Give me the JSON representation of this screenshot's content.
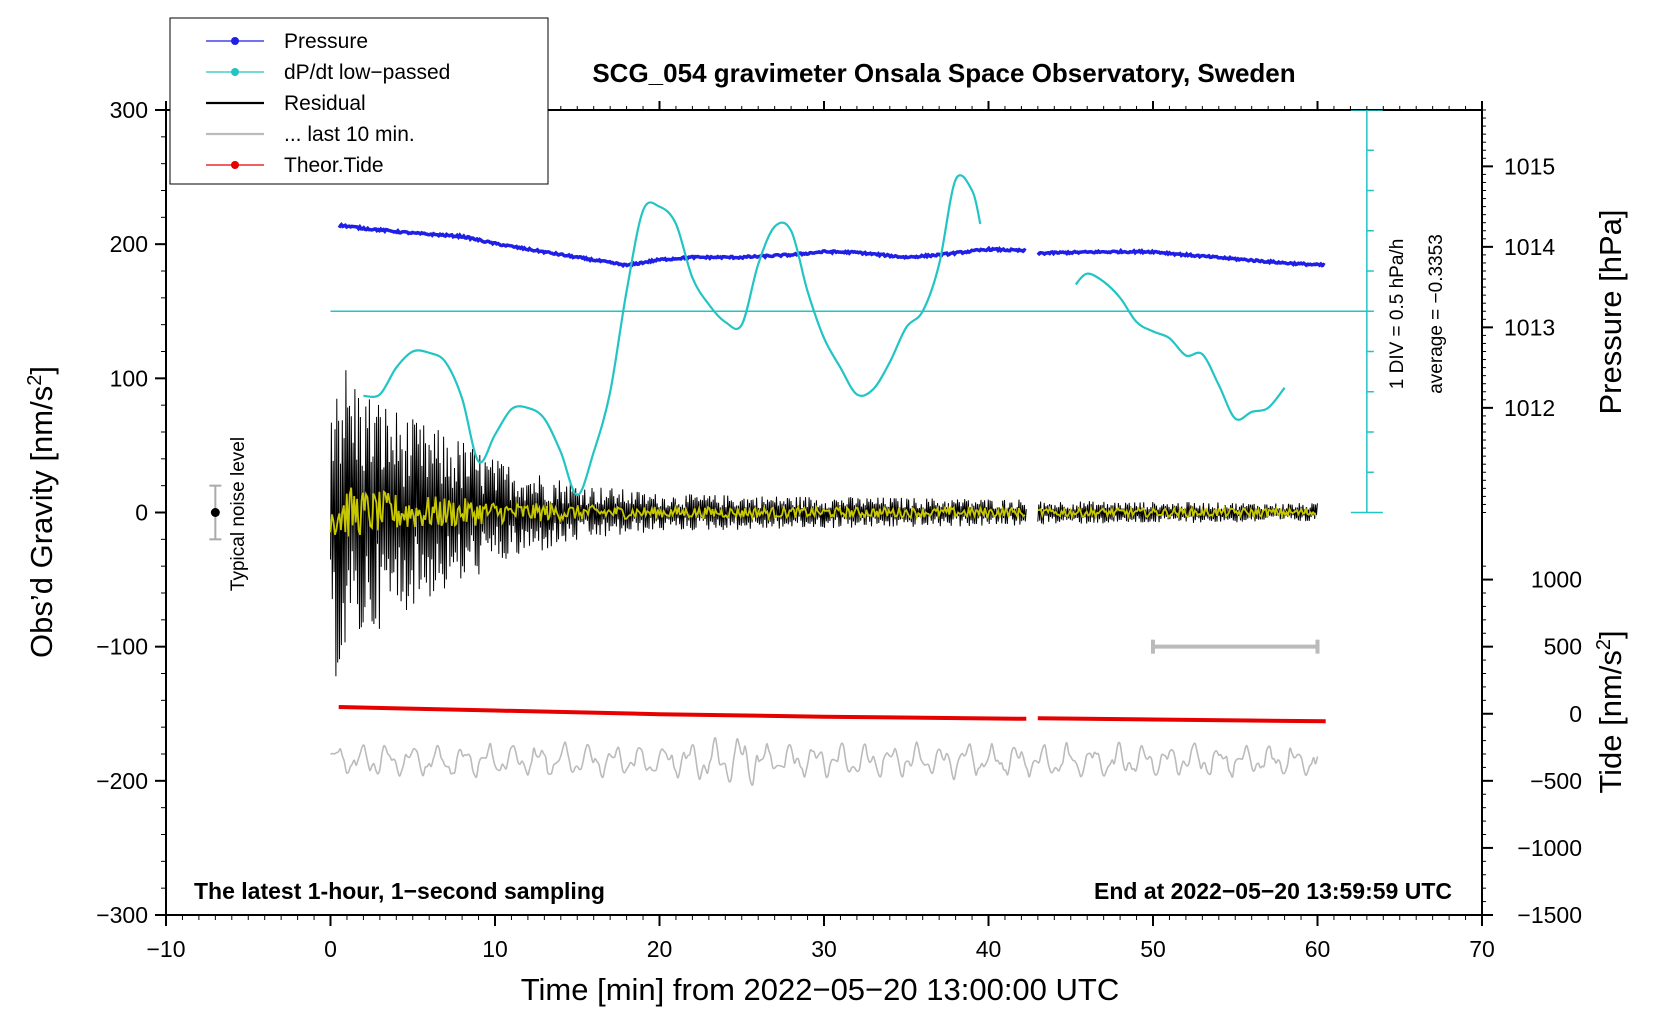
{
  "chart_data": {
    "type": "line",
    "title": "SCG_054 gravimeter Onsala Space Observatory, Sweden",
    "xlabel": "Time [min] from 2022−05−20 13:00:00 UTC",
    "ylabel_left": "Obs’d Gravity [nm/s",
    "ylabel_left_sup": "2",
    "ylabel_left_tail": "]",
    "ylabel_right_pressure": "Pressure [hPa]",
    "ylabel_right_tide": "Tide [nm/s",
    "ylabel_right_tide_sup": "2",
    "ylabel_right_tide_tail": "]",
    "xlim": [
      -10,
      70
    ],
    "ylim_left": [
      -300,
      300
    ],
    "x_ticks": [
      "−10",
      "0",
      "10",
      "20",
      "30",
      "40",
      "50",
      "60",
      "70"
    ],
    "x_tick_values": [
      -10,
      0,
      10,
      20,
      30,
      40,
      50,
      60,
      70
    ],
    "y_left_ticks": [
      "300",
      "200",
      "100",
      "0",
      "−100",
      "−200",
      "−300"
    ],
    "y_left_tick_values": [
      300,
      200,
      100,
      0,
      -100,
      -200,
      -300
    ],
    "pressure_ticks": [
      "1015",
      "1014",
      "1013",
      "1012"
    ],
    "pressure_tick_values": [
      1015,
      1014,
      1013,
      1012
    ],
    "pressure_axis": {
      "ref_value": 1014,
      "ref_gravity": 198,
      "gravity_per_hpa": 60
    },
    "tide_ticks": [
      "1000",
      "500",
      "0",
      "−500",
      "−1000",
      "−1500"
    ],
    "tide_tick_values": [
      1000,
      500,
      0,
      -500,
      -1000,
      -1500
    ],
    "tide_axis": {
      "ref_value": 0,
      "ref_gravity": -150,
      "gravity_per_unit": 0.1
    },
    "legend": [
      {
        "label": "Pressure",
        "color": "#1f1fe6",
        "marker": true
      },
      {
        "label": "dP/dt low−passed",
        "color": "#22c4c4",
        "marker": true
      },
      {
        "label": "Residual",
        "color": "#000000",
        "marker": false
      },
      {
        "label": "... last 10 min.",
        "color": "#bbbbbb",
        "marker": false
      },
      {
        "label": "Theor.Tide",
        "color": "#e60000",
        "marker": true
      }
    ],
    "notes": {
      "bottom_left": "The latest 1-hour, 1−second sampling",
      "bottom_right": "End at 2022−05−20 13:59:59 UTC",
      "noise_label": "Typical noise level",
      "dpdt_div": "1 DIV = 0.5 hPa/h",
      "dpdt_avg": "average = −0.3353"
    },
    "noise_level_bar": {
      "x": -7,
      "center": 0,
      "half_range": 20
    },
    "dpdt_zero_line": 150,
    "dpdt_scale_x": 63,
    "ten_min_bar": {
      "x_start": 50,
      "x_end": 60,
      "y": -100
    },
    "series": [
      {
        "name": "Pressure (hPa)",
        "color": "#1f1fe6",
        "segments": [
          [
            [
              0.5,
              1014.27
            ],
            [
              2,
              1014.23
            ],
            [
              5,
              1014.17
            ],
            [
              8,
              1014.13
            ],
            [
              10,
              1014.04
            ],
            [
              12,
              1013.97
            ],
            [
              15,
              1013.87
            ],
            [
              18,
              1013.77
            ],
            [
              20,
              1013.84
            ],
            [
              22,
              1013.87
            ],
            [
              25,
              1013.87
            ],
            [
              28,
              1013.9
            ],
            [
              30,
              1013.94
            ],
            [
              32,
              1013.93
            ],
            [
              35,
              1013.87
            ],
            [
              37,
              1013.9
            ],
            [
              40,
              1013.97
            ],
            [
              42.3,
              1013.95
            ]
          ],
          [
            [
              43,
              1013.92
            ],
            [
              45,
              1013.93
            ],
            [
              48,
              1013.94
            ],
            [
              50,
              1013.94
            ],
            [
              52,
              1013.9
            ],
            [
              55,
              1013.85
            ],
            [
              58,
              1013.8
            ],
            [
              60.5,
              1013.77
            ]
          ]
        ]
      },
      {
        "name": "dP/dt low-passed (gravity-axis units)",
        "color": "#22c4c4",
        "segments": [
          [
            [
              2,
              87
            ],
            [
              3,
              88
            ],
            [
              4,
              108
            ],
            [
              5,
              120
            ],
            [
              6,
              119
            ],
            [
              7,
              112
            ],
            [
              8,
              85
            ],
            [
              9,
              38
            ],
            [
              10,
              58
            ],
            [
              11,
              77
            ],
            [
              12,
              78
            ],
            [
              13,
              70
            ],
            [
              14,
              45
            ],
            [
              15,
              13
            ],
            [
              16,
              45
            ],
            [
              17,
              90
            ],
            [
              18,
              165
            ],
            [
              19,
              225
            ],
            [
              20,
              228
            ],
            [
              21,
              215
            ],
            [
              22,
              175
            ],
            [
              23,
              155
            ],
            [
              24,
              142
            ],
            [
              25,
              140
            ],
            [
              26,
              185
            ],
            [
              27,
              213
            ],
            [
              28,
              210
            ],
            [
              29,
              165
            ],
            [
              30,
              130
            ],
            [
              31,
              108
            ],
            [
              32,
              88
            ],
            [
              33,
              92
            ],
            [
              34,
              112
            ],
            [
              35,
              138
            ],
            [
              36,
              150
            ],
            [
              37,
              185
            ],
            [
              38,
              248
            ],
            [
              39,
              240
            ],
            [
              39.5,
              215
            ]
          ],
          [
            [
              45.3,
              170
            ],
            [
              46,
              178
            ],
            [
              47,
              172
            ],
            [
              48,
              160
            ],
            [
              49,
              142
            ],
            [
              50,
              135
            ],
            [
              51,
              130
            ],
            [
              52,
              117
            ],
            [
              53,
              118
            ],
            [
              54,
              95
            ],
            [
              55,
              70
            ],
            [
              56,
              75
            ],
            [
              57,
              78
            ],
            [
              58,
              93
            ]
          ]
        ]
      },
      {
        "name": "Theoretical Tide (nm/s^2)",
        "color": "#e60000",
        "segments": [
          [
            [
              0.5,
              50
            ],
            [
              10,
              24
            ],
            [
              20,
              -3
            ],
            [
              30,
              -22
            ],
            [
              42.3,
              -38
            ]
          ],
          [
            [
              43,
              -33
            ],
            [
              50,
              -43
            ],
            [
              60.5,
              -56
            ]
          ]
        ]
      },
      {
        "name": "Residual (nm/s^2)",
        "color": "#000000",
        "envelope": [
          [
            0,
            130
          ],
          [
            2,
            95
          ],
          [
            5,
            70
          ],
          [
            8,
            55
          ],
          [
            10,
            40
          ],
          [
            15,
            22
          ],
          [
            20,
            14
          ],
          [
            30,
            12
          ],
          [
            42,
            10
          ],
          [
            43,
            9
          ],
          [
            50,
            8
          ],
          [
            60,
            7
          ]
        ],
        "x_range": [
          0,
          60
        ],
        "gap": [
          42.3,
          43
        ]
      },
      {
        "name": "last 10 min. (gravity-axis units)",
        "color": "#bbbbbb",
        "baseline": -185,
        "amplitude": 14,
        "x_range": [
          0,
          60
        ]
      }
    ]
  }
}
